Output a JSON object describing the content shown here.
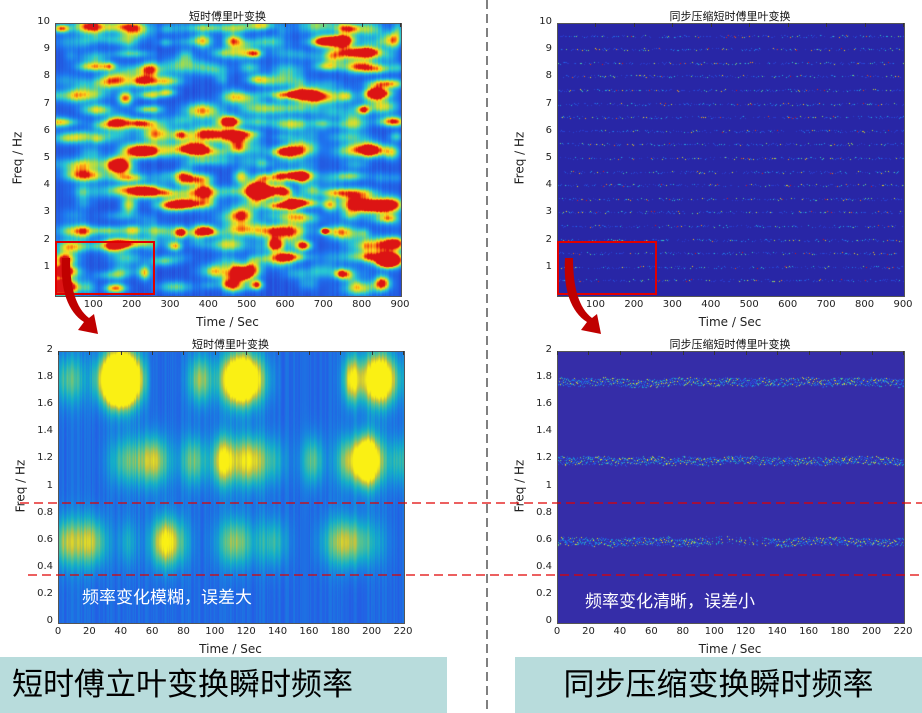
{
  "colors": {
    "highlight_box": "#e00000",
    "arrow": "#c00000",
    "divider": "#000000",
    "dashed_guides": "#e00000",
    "caption_bg": "#b8dcdc",
    "note_text": "#ffffff"
  },
  "chart_data": [
    {
      "type": "heatmap",
      "title": "短时傅里叶变换",
      "xlabel": "Time / Sec",
      "ylabel": "Freq / Hz",
      "xlim": [
        0,
        900
      ],
      "ylim": [
        0,
        10
      ],
      "xticks": [
        "100",
        "200",
        "300",
        "400",
        "500",
        "600",
        "700",
        "800",
        "900"
      ],
      "yticks": [
        "1",
        "2",
        "3",
        "4",
        "5",
        "6",
        "7",
        "8",
        "9",
        "10"
      ],
      "colormap": "jet",
      "highlight_region": {
        "x": [
          0,
          260
        ],
        "y": [
          0,
          2
        ]
      },
      "peak": {
        "x": 700,
        "y": 2.4
      }
    },
    {
      "type": "heatmap",
      "title": "同步压缩短时傅里叶变换",
      "xlabel": "Time / Sec",
      "ylabel": "Freq / Hz",
      "xlim": [
        0,
        900
      ],
      "ylim": [
        0,
        10
      ],
      "xticks": [
        "100",
        "200",
        "300",
        "400",
        "500",
        "600",
        "700",
        "800",
        "900"
      ],
      "yticks": [
        "1",
        "2",
        "3",
        "4",
        "5",
        "6",
        "7",
        "8",
        "9",
        "10"
      ],
      "colormap": "jet",
      "highlight_region": {
        "x": [
          0,
          260
        ],
        "y": [
          0,
          2
        ]
      }
    },
    {
      "type": "heatmap",
      "title": "短时傅里叶变换",
      "xlabel": "Time / Sec",
      "ylabel": "Freq / Hz",
      "xlim": [
        0,
        220
      ],
      "ylim": [
        0,
        2
      ],
      "xticks": [
        "0",
        "20",
        "40",
        "60",
        "80",
        "100",
        "120",
        "140",
        "160",
        "180",
        "200",
        "220"
      ],
      "yticks": [
        "0",
        "0.2",
        "0.4",
        "0.6",
        "0.8",
        "1",
        "1.2",
        "1.4",
        "1.6",
        "1.8",
        "2"
      ],
      "colormap": "parula",
      "ridges_hz": [
        0.6,
        1.2,
        1.8
      ],
      "annotation": "频率变化模糊，误差大"
    },
    {
      "type": "heatmap",
      "title": "同步压缩短时傅里叶变换",
      "xlabel": "Time / Sec",
      "ylabel": "Freq / Hz",
      "xlim": [
        0,
        220
      ],
      "ylim": [
        0,
        2
      ],
      "xticks": [
        "0",
        "20",
        "40",
        "60",
        "80",
        "100",
        "120",
        "140",
        "160",
        "180",
        "200",
        "220"
      ],
      "yticks": [
        "0",
        "0.2",
        "0.4",
        "0.6",
        "0.8",
        "1",
        "1.2",
        "1.4",
        "1.6",
        "1.8",
        "2"
      ],
      "colormap": "parula",
      "ridges_hz": [
        0.6,
        1.2,
        1.8
      ],
      "annotation": "频率变化清晰，误差小"
    }
  ],
  "guides_hz": [
    0.88,
    0.35
  ],
  "captions": {
    "left": "短时傅立叶变换瞬时频率",
    "right": "同步压缩变换瞬时频率"
  }
}
